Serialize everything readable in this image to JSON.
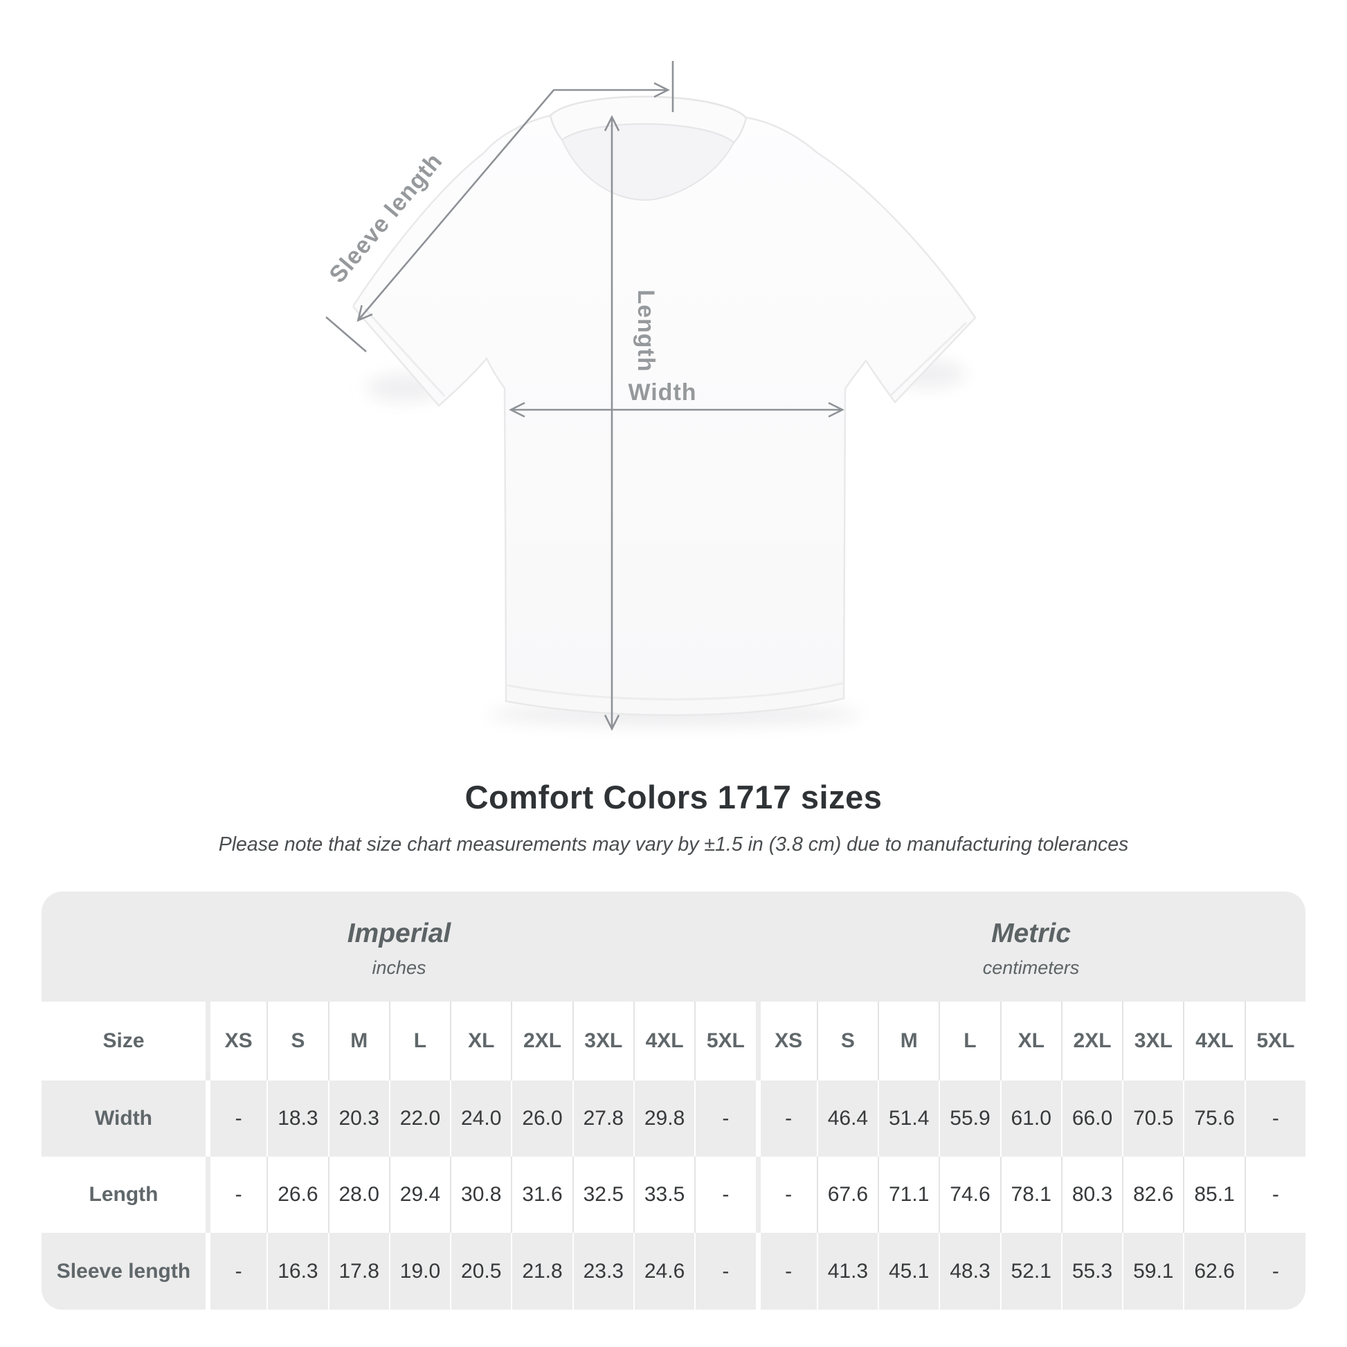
{
  "diagram": {
    "sleeve_length_label": "Sleeve length",
    "length_label": "Length",
    "width_label": "Width"
  },
  "heading": {
    "title": "Comfort Colors 1717 sizes",
    "note": "Please note that size chart measurements may vary by ±1.5 in (3.8 cm) due to manufacturing tolerances"
  },
  "table": {
    "imperial": {
      "title": "Imperial",
      "subtitle": "inches"
    },
    "metric": {
      "title": "Metric",
      "subtitle": "centimeters"
    },
    "size_header": "Size",
    "sizes": [
      "XS",
      "S",
      "M",
      "L",
      "XL",
      "2XL",
      "3XL",
      "4XL",
      "5XL"
    ],
    "rows": [
      {
        "label": "Width",
        "imperial": [
          "-",
          "18.3",
          "20.3",
          "22.0",
          "24.0",
          "26.0",
          "27.8",
          "29.8",
          "-"
        ],
        "metric": [
          "-",
          "46.4",
          "51.4",
          "55.9",
          "61.0",
          "66.0",
          "70.5",
          "75.6",
          "-"
        ]
      },
      {
        "label": "Length",
        "imperial": [
          "-",
          "26.6",
          "28.0",
          "29.4",
          "30.8",
          "31.6",
          "32.5",
          "33.5",
          "-"
        ],
        "metric": [
          "-",
          "67.6",
          "71.1",
          "74.6",
          "78.1",
          "80.3",
          "82.6",
          "85.1",
          "-"
        ]
      },
      {
        "label": "Sleeve length",
        "imperial": [
          "-",
          "16.3",
          "17.8",
          "19.0",
          "20.5",
          "21.8",
          "23.3",
          "24.6",
          "-"
        ],
        "metric": [
          "-",
          "41.3",
          "45.1",
          "48.3",
          "52.1",
          "55.3",
          "59.1",
          "62.6",
          "-"
        ]
      }
    ]
  },
  "chart_data": {
    "type": "table",
    "title": "Comfort Colors 1717 sizes",
    "note": "Please note that size chart measurements may vary by ±1.5 in (3.8 cm) due to manufacturing tolerances",
    "sections": [
      {
        "name": "Imperial",
        "unit": "inches",
        "columns": [
          "XS",
          "S",
          "M",
          "L",
          "XL",
          "2XL",
          "3XL",
          "4XL",
          "5XL"
        ],
        "rows": [
          {
            "label": "Width",
            "values": [
              null,
              18.3,
              20.3,
              22.0,
              24.0,
              26.0,
              27.8,
              29.8,
              null
            ]
          },
          {
            "label": "Length",
            "values": [
              null,
              26.6,
              28.0,
              29.4,
              30.8,
              31.6,
              32.5,
              33.5,
              null
            ]
          },
          {
            "label": "Sleeve length",
            "values": [
              null,
              16.3,
              17.8,
              19.0,
              20.5,
              21.8,
              23.3,
              24.6,
              null
            ]
          }
        ]
      },
      {
        "name": "Metric",
        "unit": "centimeters",
        "columns": [
          "XS",
          "S",
          "M",
          "L",
          "XL",
          "2XL",
          "3XL",
          "4XL",
          "5XL"
        ],
        "rows": [
          {
            "label": "Width",
            "values": [
              null,
              46.4,
              51.4,
              55.9,
              61.0,
              66.0,
              70.5,
              75.6,
              null
            ]
          },
          {
            "label": "Length",
            "values": [
              null,
              67.6,
              71.1,
              74.6,
              78.1,
              80.3,
              82.6,
              85.1,
              null
            ]
          },
          {
            "label": "Sleeve length",
            "values": [
              null,
              41.3,
              45.1,
              48.3,
              52.1,
              55.3,
              59.1,
              62.6,
              null
            ]
          }
        ]
      }
    ]
  },
  "colors": {
    "table_bg": "#ececec",
    "row_alt": "#ffffff",
    "arrow": "#8e9297",
    "diagram_label": "#96999c",
    "title_text": "#303336",
    "note_text": "#4a4d4f",
    "unit_header_text": "#5c6365",
    "value_text": "#37393b"
  }
}
